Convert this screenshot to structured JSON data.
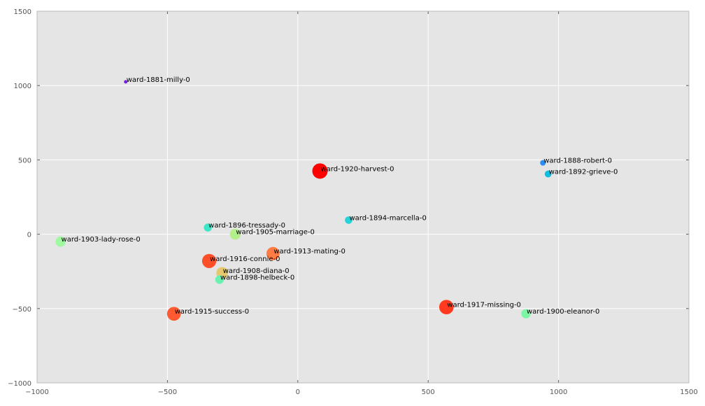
{
  "chart_data": {
    "type": "scatter",
    "title": "",
    "xlabel": "",
    "ylabel": "",
    "xlim": [
      -1000,
      1500
    ],
    "ylim": [
      -1000,
      1500
    ],
    "xticks": [
      -1000,
      -500,
      0,
      500,
      1000,
      1500
    ],
    "yticks": [
      -1000,
      -500,
      0,
      500,
      1000,
      1500
    ],
    "xtick_labels": [
      "−1000",
      "−500",
      "0",
      "500",
      "1000",
      "1500"
    ],
    "ytick_labels": [
      "−1000",
      "−500",
      "0",
      "500",
      "1000",
      "1500"
    ],
    "grid": true,
    "background": "#e5e5e5",
    "points": [
      {
        "label": "ward-1881-milly-0",
        "x": -660,
        "y": 1025,
        "year": 1881,
        "color": "#7b1fe0"
      },
      {
        "label": "ward-1888-robert-0",
        "x": 940,
        "y": 480,
        "year": 1888,
        "color": "#2a8ef2"
      },
      {
        "label": "ward-1892-grieve-0",
        "x": 960,
        "y": 405,
        "year": 1892,
        "color": "#10bfe0"
      },
      {
        "label": "ward-1920-harvest-0",
        "x": 85,
        "y": 425,
        "year": 1920,
        "color": "#ff0000"
      },
      {
        "label": "ward-1894-marcella-0",
        "x": 195,
        "y": 95,
        "year": 1894,
        "color": "#26d4d8"
      },
      {
        "label": "ward-1896-tressady-0",
        "x": -345,
        "y": 45,
        "year": 1896,
        "color": "#3ee6c8"
      },
      {
        "label": "ward-1905-marriage-0",
        "x": -240,
        "y": 0,
        "year": 1905,
        "color": "#b4f08a"
      },
      {
        "label": "ward-1903-lady-rose-0",
        "x": -910,
        "y": -50,
        "year": 1903,
        "color": "#a0f8a0"
      },
      {
        "label": "ward-1913-mating-0",
        "x": -95,
        "y": -130,
        "year": 1913,
        "color": "#ff7c45"
      },
      {
        "label": "ward-1916-connie-0",
        "x": -340,
        "y": -180,
        "year": 1916,
        "color": "#ff4f28"
      },
      {
        "label": "ward-1908-diana-0",
        "x": -290,
        "y": -260,
        "year": 1908,
        "color": "#e6c86e"
      },
      {
        "label": "ward-1898-helbeck-0",
        "x": -300,
        "y": -305,
        "year": 1898,
        "color": "#6cf2b0"
      },
      {
        "label": "ward-1915-success-0",
        "x": -475,
        "y": -535,
        "year": 1915,
        "color": "#ff5a32"
      },
      {
        "label": "ward-1917-missing-0",
        "x": 570,
        "y": -490,
        "year": 1917,
        "color": "#ff3a1e"
      },
      {
        "label": "ward-1900-eleanor-0",
        "x": 875,
        "y": -535,
        "year": 1900,
        "color": "#7cf5a4"
      }
    ]
  }
}
